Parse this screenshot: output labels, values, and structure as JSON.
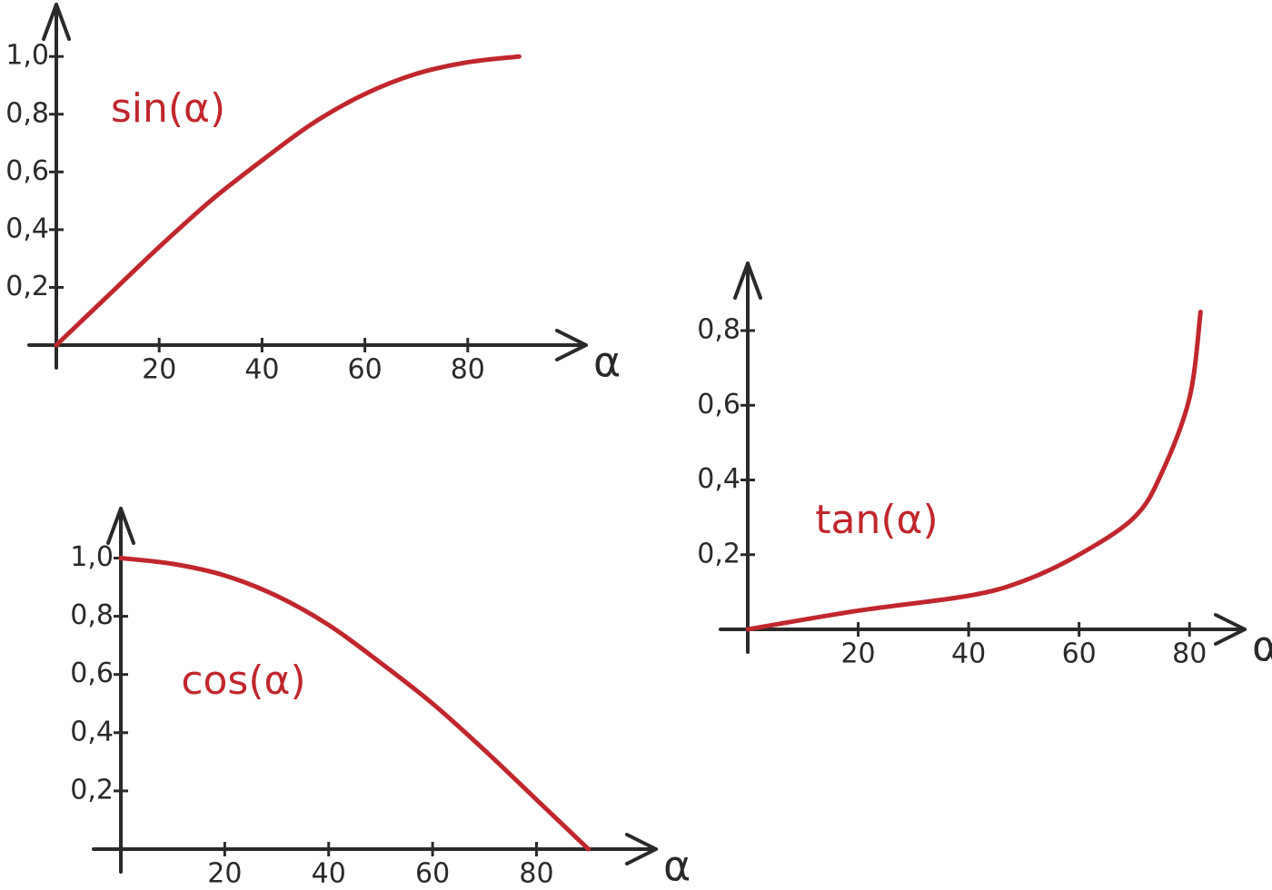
{
  "chart_data": [
    {
      "type": "line",
      "annotation": "sin(α)",
      "x_label": "α",
      "x": [
        0,
        10,
        20,
        30,
        40,
        50,
        60,
        70,
        80,
        90
      ],
      "values": [
        0,
        0.17,
        0.34,
        0.5,
        0.64,
        0.77,
        0.87,
        0.94,
        0.98,
        1.0
      ],
      "color": "#c0272d",
      "xlim": [
        0,
        103
      ],
      "ylim": [
        0,
        1.18
      ],
      "xticks": [
        20,
        40,
        60,
        80
      ],
      "yticks": [
        {
          "value": 0.2,
          "label": "0,2"
        },
        {
          "value": 0.4,
          "label": "0,4"
        },
        {
          "value": 0.6,
          "label": "0,6"
        },
        {
          "value": 0.8,
          "label": "0,8"
        },
        {
          "value": 1.0,
          "label": "1,0"
        }
      ]
    },
    {
      "type": "line",
      "annotation": "tan(α)",
      "x_label": "α",
      "x": [
        0,
        20,
        40,
        50,
        60,
        70,
        75,
        80,
        82
      ],
      "values": [
        0,
        0.05,
        0.09,
        0.13,
        0.2,
        0.3,
        0.42,
        0.62,
        0.85
      ],
      "color": "#c0272d",
      "xlim": [
        0,
        90
      ],
      "ylim": [
        0,
        0.98
      ],
      "xticks": [
        20,
        40,
        60,
        80
      ],
      "yticks": [
        {
          "value": 0.2,
          "label": "0,2"
        },
        {
          "value": 0.4,
          "label": "0,4"
        },
        {
          "value": 0.6,
          "label": "0,6"
        },
        {
          "value": 0.8,
          "label": "0,8"
        }
      ]
    },
    {
      "type": "line",
      "annotation": "cos(α)",
      "x_label": "α",
      "x": [
        0,
        10,
        20,
        30,
        40,
        50,
        60,
        70,
        80,
        90
      ],
      "values": [
        1.0,
        0.98,
        0.94,
        0.87,
        0.77,
        0.64,
        0.5,
        0.34,
        0.17,
        0
      ],
      "color": "#c0272d",
      "xlim": [
        0,
        103
      ],
      "ylim": [
        0,
        1.17
      ],
      "xticks": [
        20,
        40,
        60,
        80
      ],
      "yticks": [
        {
          "value": 0.2,
          "label": "0,2"
        },
        {
          "value": 0.4,
          "label": "0,4"
        },
        {
          "value": 0.6,
          "label": "0,6"
        },
        {
          "value": 0.8,
          "label": "0,8"
        },
        {
          "value": 1.0,
          "label": "1,0"
        }
      ]
    }
  ]
}
